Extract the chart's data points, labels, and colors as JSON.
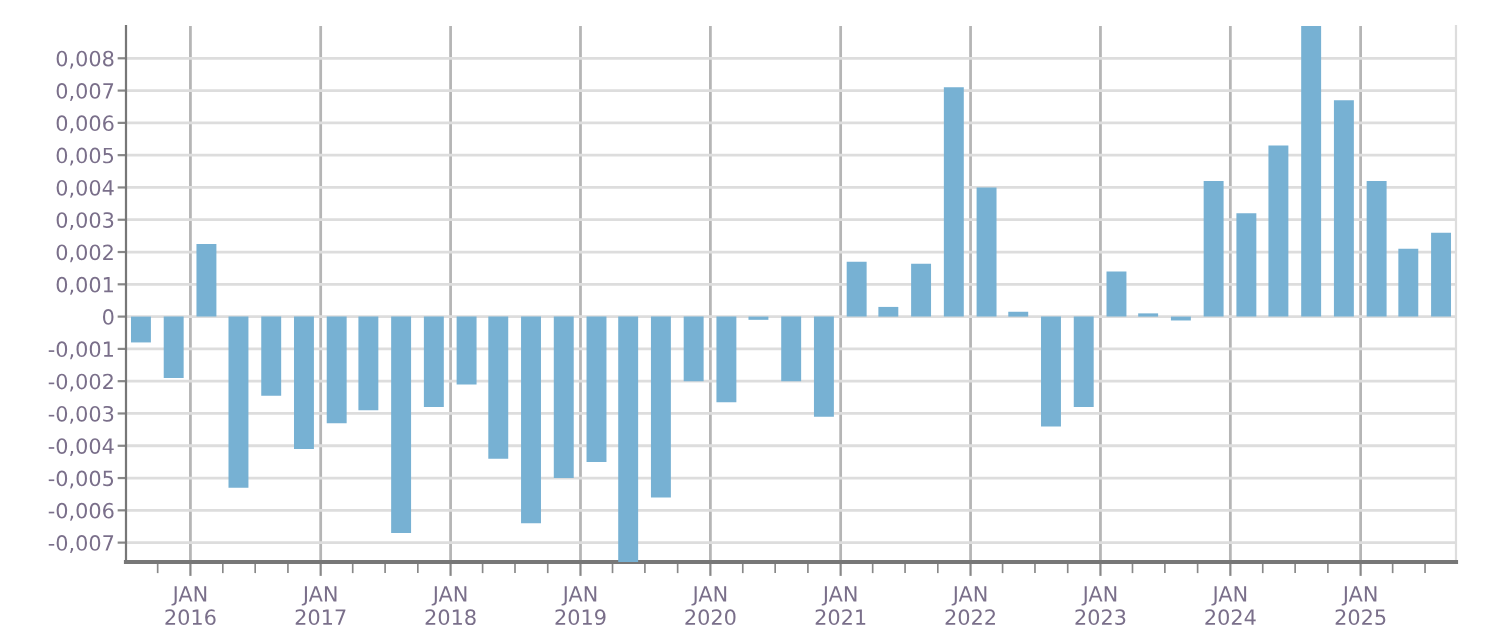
{
  "chart_data": {
    "type": "bar",
    "x": [
      "2015-08-15",
      "2015-11-15",
      "2016-02-15",
      "2016-05-15",
      "2016-08-15",
      "2016-11-15",
      "2017-02-15",
      "2017-05-15",
      "2017-08-15",
      "2017-11-15",
      "2018-02-15",
      "2018-05-15",
      "2018-08-15",
      "2018-11-15",
      "2019-02-15",
      "2019-05-15",
      "2019-08-15",
      "2019-11-15",
      "2020-02-15",
      "2020-05-15",
      "2020-08-15",
      "2020-11-15",
      "2021-02-15",
      "2021-05-15",
      "2021-08-15",
      "2021-11-15",
      "2022-02-15",
      "2022-05-15",
      "2022-08-15",
      "2022-11-15",
      "2023-02-15",
      "2023-05-15",
      "2023-08-15",
      "2023-11-15",
      "2024-02-15",
      "2024-05-15",
      "2024-08-15",
      "2024-11-15",
      "2025-02-15",
      "2025-05-15",
      "2025-08-15"
    ],
    "values": [
      -0.0008,
      -0.0019,
      0.00225,
      -0.0053,
      -0.00245,
      -0.0041,
      -0.0033,
      -0.0029,
      -0.0067,
      -0.0028,
      -0.0021,
      -0.0044,
      -0.0064,
      -0.005,
      -0.0045,
      -0.0076,
      -0.0056,
      -0.002,
      -0.00265,
      -0.0001,
      -0.002,
      -0.0031,
      0.0017,
      0.0003,
      0.00164,
      0.0071,
      0.004,
      0.00015,
      -0.0034,
      -0.0028,
      0.0014,
      0.0001,
      -0.00012,
      0.0042,
      0.0032,
      0.0053,
      0.009,
      0.0067,
      0.0042,
      0.0021,
      0.0026
    ],
    "color": "#77b1d3",
    "xlim": [
      "2015-07-04",
      "2025-09-26"
    ],
    "xticks": [
      {
        "value": "2016-01-01",
        "label": "JAN\n2016"
      },
      {
        "value": "2017-01-01",
        "label": "JAN\n2017"
      },
      {
        "value": "2018-01-01",
        "label": "JAN\n2018"
      },
      {
        "value": "2019-01-01",
        "label": "JAN\n2019"
      },
      {
        "value": "2020-01-01",
        "label": "JAN\n2020"
      },
      {
        "value": "2021-01-01",
        "label": "JAN\n2021"
      },
      {
        "value": "2022-01-01",
        "label": "JAN\n2022"
      },
      {
        "value": "2023-01-01",
        "label": "JAN\n2023"
      },
      {
        "value": "2024-01-01",
        "label": "JAN\n2024"
      },
      {
        "value": "2025-01-01",
        "label": "JAN\n2025"
      }
    ],
    "ylim": [
      -0.0076,
      0.009
    ],
    "yticks": [
      {
        "value": -0.007,
        "label": "-0,007"
      },
      {
        "value": -0.006,
        "label": "-0,006"
      },
      {
        "value": -0.005,
        "label": "-0,005"
      },
      {
        "value": -0.004,
        "label": "-0,004"
      },
      {
        "value": -0.003,
        "label": "-0,003"
      },
      {
        "value": -0.002,
        "label": "-0,002"
      },
      {
        "value": -0.001,
        "label": "-0,001"
      },
      {
        "value": 0,
        "label": "0"
      },
      {
        "value": 0.001,
        "label": "0,001"
      },
      {
        "value": 0.002,
        "label": "0,002"
      },
      {
        "value": 0.003,
        "label": "0,003"
      },
      {
        "value": 0.004,
        "label": "0,004"
      },
      {
        "value": 0.005,
        "label": "0,005"
      },
      {
        "value": 0.006,
        "label": "0,006"
      },
      {
        "value": 0.007,
        "label": "0,007"
      },
      {
        "value": 0.008,
        "label": "0,008"
      }
    ],
    "grid": true
  }
}
